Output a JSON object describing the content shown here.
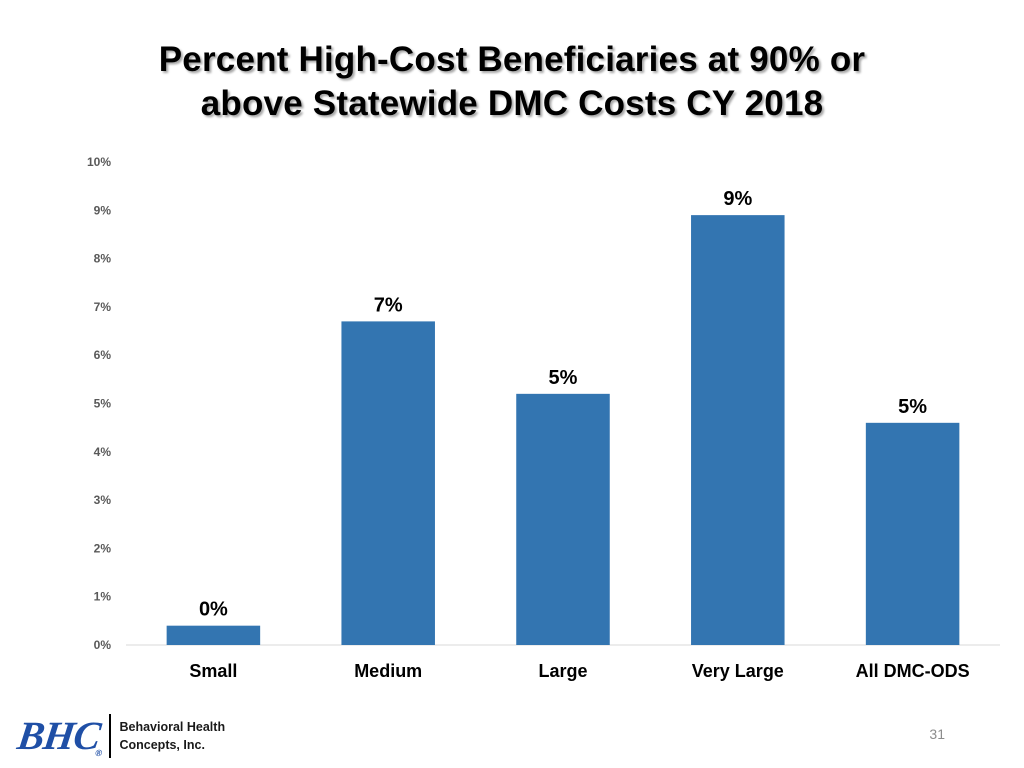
{
  "slide": {
    "title_line1": "Percent High-Cost Beneficiaries at 90% or",
    "title_line2": "above Statewide DMC Costs CY 2018",
    "page_number": "31"
  },
  "footer": {
    "logo_mark": "BHC",
    "logo_registered": "®",
    "company_line1": "Behavioral Health",
    "company_line2": "Concepts, Inc."
  },
  "colors": {
    "bar": "#3375b1",
    "axis_tick_text": "#595959",
    "baseline": "#d9d9d9"
  },
  "chart_data": {
    "type": "bar",
    "title": "Percent High-Cost Beneficiaries at 90% or above Statewide DMC Costs CY 2018",
    "xlabel": "",
    "ylabel": "",
    "categories": [
      "Small",
      "Medium",
      "Large",
      "Very Large",
      "All DMC-ODS"
    ],
    "values": [
      0.4,
      6.7,
      5.2,
      8.9,
      4.6
    ],
    "data_labels": [
      "0%",
      "7%",
      "5%",
      "9%",
      "5%"
    ],
    "ylim": [
      0,
      10
    ],
    "yticks": [
      0,
      1,
      2,
      3,
      4,
      5,
      6,
      7,
      8,
      9,
      10
    ],
    "ytick_labels": [
      "0%",
      "1%",
      "2%",
      "3%",
      "4%",
      "5%",
      "6%",
      "7%",
      "8%",
      "9%",
      "10%"
    ],
    "grid": false,
    "legend": "none"
  }
}
